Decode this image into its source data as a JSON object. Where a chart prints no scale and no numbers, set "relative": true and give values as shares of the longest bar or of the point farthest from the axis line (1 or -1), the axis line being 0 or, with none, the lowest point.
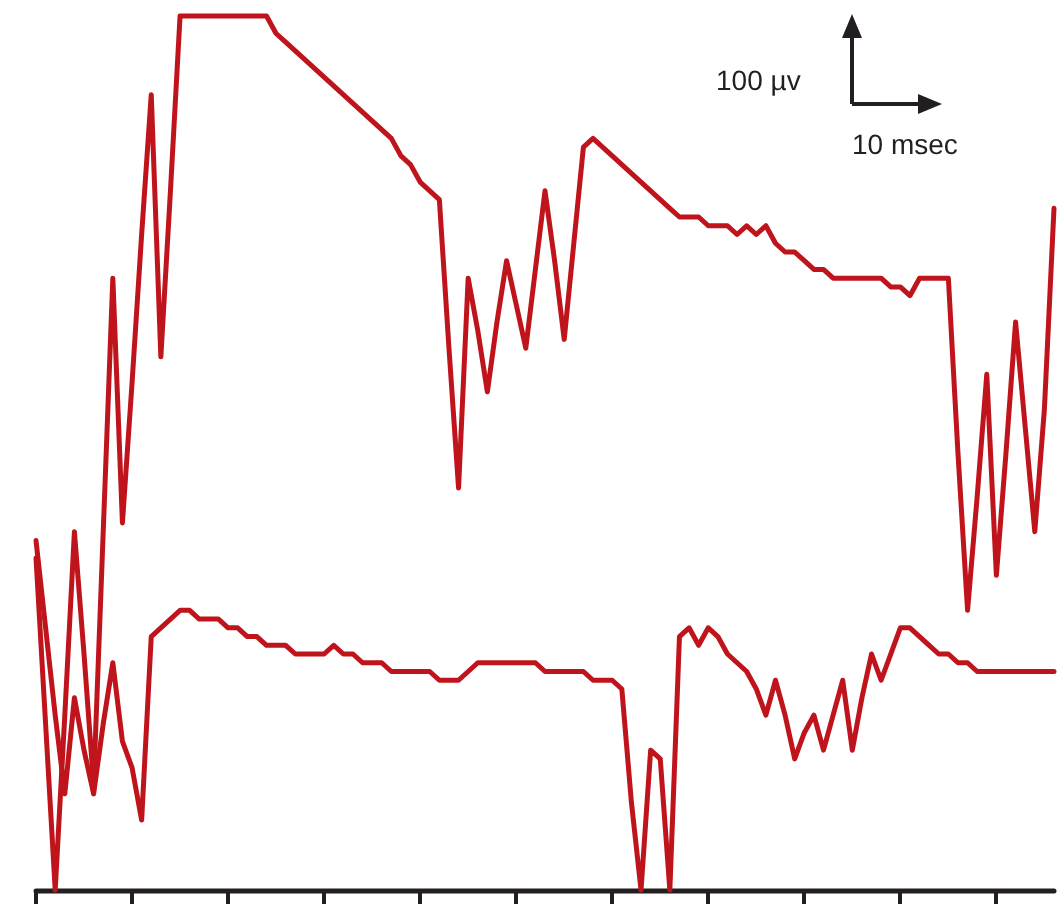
{
  "chart_data": {
    "type": "line",
    "relative": true,
    "annotations": [
      "100 µv",
      "10 msec"
    ],
    "categories": [
      null,
      null,
      null,
      null,
      null,
      null,
      null,
      null,
      null,
      null,
      null,
      null,
      null,
      null,
      null,
      null,
      null,
      null,
      null,
      null,
      null,
      null,
      null,
      null,
      null,
      null,
      null,
      null,
      null,
      null,
      null,
      null,
      null,
      null,
      null,
      null,
      null,
      null,
      null,
      null,
      null,
      null,
      null,
      null,
      null,
      null,
      null,
      null,
      null,
      null,
      null,
      null,
      null,
      null,
      null,
      null,
      null,
      null,
      null,
      null,
      null,
      null,
      null,
      null,
      null,
      null,
      null,
      null,
      null,
      null,
      null,
      null,
      null,
      null,
      null,
      null,
      null,
      null,
      null,
      null,
      null,
      null,
      null,
      null,
      null,
      null,
      null,
      null,
      null,
      null,
      null,
      null,
      null,
      null,
      null,
      null,
      null,
      null,
      null,
      null,
      null,
      null,
      null,
      null,
      null,
      null,
      null
    ],
    "series": [
      {
        "color": "#c0141c",
        "values": [
          0.38,
          0.19,
          0,
          0.2,
          0.41,
          0.27,
          0.12,
          0.41,
          0.7,
          0.42,
          0.58,
          0.75,
          0.91,
          0.61,
          0.8,
          1,
          1,
          1,
          1,
          1,
          1,
          1,
          1,
          1,
          1,
          0.98,
          0.97,
          0.96,
          0.95,
          0.94,
          0.93,
          0.92,
          0.91,
          0.9,
          0.89,
          0.88,
          0.87,
          0.86,
          0.84,
          0.83,
          0.81,
          0.8,
          0.79,
          0.62,
          0.46,
          0.7,
          0.64,
          0.57,
          0.65,
          0.72,
          0.67,
          0.62,
          0.71,
          0.8,
          0.72,
          0.63,
          0.74,
          0.85,
          0.86,
          0.85,
          0.84,
          0.83,
          0.82,
          0.81,
          0.8,
          0.79,
          0.78,
          0.77,
          0.77,
          0.77,
          0.76,
          0.76,
          0.76,
          0.75,
          0.76,
          0.75,
          0.76,
          0.74,
          0.73,
          0.73,
          0.72,
          0.71,
          0.71,
          0.7,
          0.7,
          0.7,
          0.7,
          0.7,
          0.7,
          0.69,
          0.69,
          0.68,
          0.7,
          0.7,
          0.7,
          0.7,
          0.5,
          0.32,
          0.45,
          0.59,
          0.36,
          0.5,
          0.65,
          0.53,
          0.41,
          0.55,
          0.78
        ]
      },
      {
        "color": "#c0141c",
        "values": [
          0.4,
          0.3,
          0.2,
          0.11,
          0.22,
          0.16,
          0.11,
          0.19,
          0.26,
          0.17,
          0.14,
          0.08,
          0.29,
          0.3,
          0.31,
          0.32,
          0.32,
          0.31,
          0.31,
          0.31,
          0.3,
          0.3,
          0.29,
          0.29,
          0.28,
          0.28,
          0.28,
          0.27,
          0.27,
          0.27,
          0.27,
          0.28,
          0.27,
          0.27,
          0.26,
          0.26,
          0.26,
          0.25,
          0.25,
          0.25,
          0.25,
          0.25,
          0.24,
          0.24,
          0.24,
          0.25,
          0.26,
          0.26,
          0.26,
          0.26,
          0.26,
          0.26,
          0.26,
          0.25,
          0.25,
          0.25,
          0.25,
          0.25,
          0.24,
          0.24,
          0.24,
          0.23,
          0.1,
          0,
          0.16,
          0.15,
          0,
          0.29,
          0.3,
          0.28,
          0.3,
          0.29,
          0.27,
          0.26,
          0.25,
          0.23,
          0.2,
          0.24,
          0.2,
          0.15,
          0.18,
          0.2,
          0.16,
          0.2,
          0.24,
          0.16,
          0.22,
          0.27,
          0.24,
          0.27,
          0.3,
          0.3,
          0.29,
          0.28,
          0.27,
          0.27,
          0.26,
          0.26,
          0.25,
          0.25,
          0.25,
          0.25,
          0.25,
          0.25,
          0.25,
          0.25,
          0.25
        ]
      }
    ]
  }
}
